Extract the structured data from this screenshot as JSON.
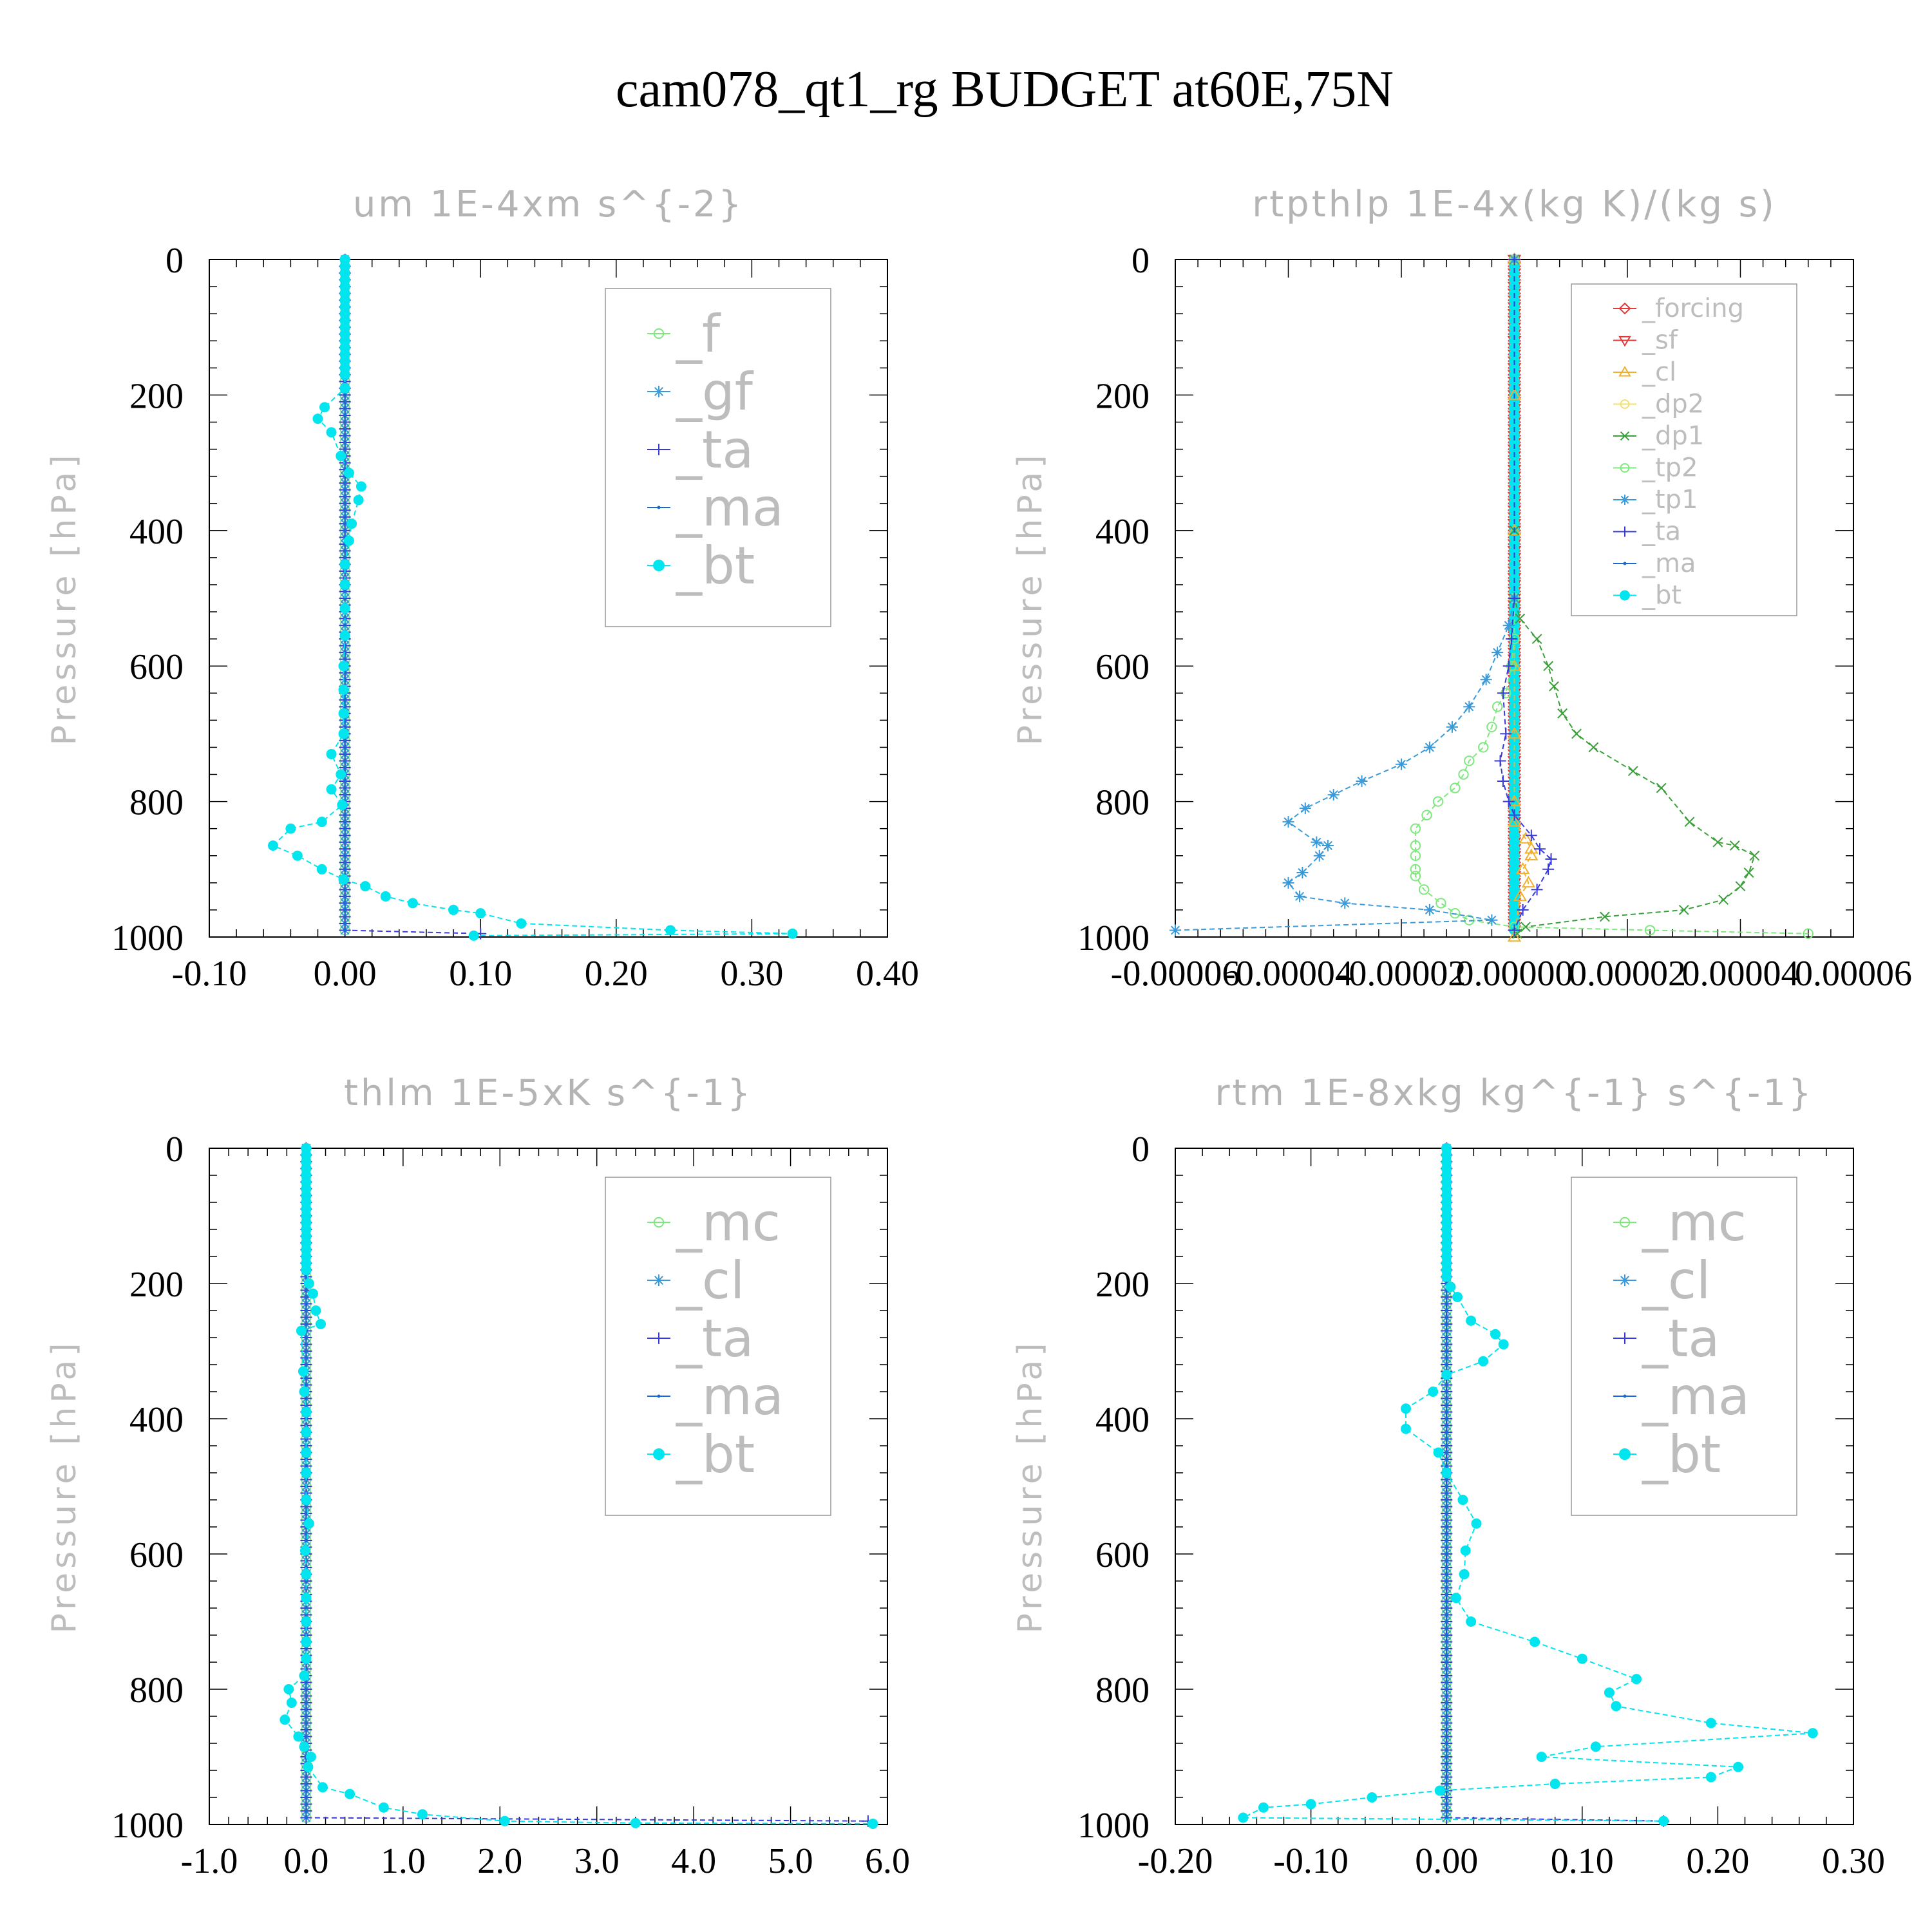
{
  "figure_title": "cam078_qt1_rg  BUDGET at60E,75N",
  "chart_data": [
    {
      "type": "line",
      "title": "um  1E-4xm s^{-2}",
      "ylabel": "Pressure [hPa]",
      "xlabel": "",
      "xlim": [
        -0.1,
        0.4
      ],
      "ylim": [
        1000,
        0
      ],
      "xticks": [
        "-0.10",
        "0.00",
        "0.10",
        "0.20",
        "0.30",
        "0.40"
      ],
      "xtick_values": [
        -0.1,
        0.0,
        0.1,
        0.2,
        0.3,
        0.4
      ],
      "yticks": [
        "0",
        "200",
        "400",
        "600",
        "800",
        "1000"
      ],
      "legend_position": "top-right",
      "legend_size": "large",
      "series": [
        {
          "name": "_f",
          "color": "#7ee87e",
          "marker": "circle-open",
          "profile": "zero"
        },
        {
          "name": "_gf",
          "color": "#3a9ad9",
          "marker": "asterisk",
          "profile": "zero"
        },
        {
          "name": "_ta",
          "color": "#3a3ad9",
          "marker": "plus",
          "profile": "zero",
          "surface": {
            "p": 995,
            "x": 0.1
          }
        },
        {
          "name": "_ma",
          "color": "#1a6ad0",
          "marker": "dot",
          "profile": "zero"
        },
        {
          "name": "_bt",
          "color": "#00e5ee",
          "marker": "filled-circle",
          "x": [
            0,
            0,
            0,
            0,
            0,
            0,
            0,
            0,
            0,
            0,
            0,
            0,
            0,
            0,
            0,
            0,
            0,
            0,
            0.0,
            -0.015,
            -0.02,
            -0.01,
            -0.003,
            0.003,
            0.012,
            0.01,
            0.005,
            0.003,
            0,
            0,
            0,
            0,
            -0.001,
            -0.001,
            -0.001,
            -0.001,
            -0.01,
            -0.003,
            -0.01,
            -0.002,
            -0.017,
            -0.04,
            -0.053,
            -0.035,
            -0.017,
            -0.001,
            0.015,
            0.03,
            0.05,
            0.08,
            0.1,
            0.13,
            0.24,
            0.33,
            0.095
          ],
          "p": [
            0,
            10,
            20,
            30,
            40,
            50,
            60,
            70,
            80,
            90,
            100,
            110,
            120,
            130,
            140,
            150,
            160,
            170,
            190,
            218,
            235,
            255,
            290,
            315,
            335,
            355,
            390,
            415,
            450,
            480,
            515,
            555,
            600,
            635,
            670,
            700,
            730,
            760,
            782,
            805,
            830,
            840,
            865,
            880,
            900,
            915,
            925,
            940,
            950,
            960,
            965,
            980,
            990,
            995,
            998
          ]
        }
      ]
    },
    {
      "type": "line",
      "title": "rtpthlp  1E-4x(kg K)/(kg s)",
      "ylabel": "Pressure [hPa]",
      "xlabel": "",
      "xlim": [
        -6e-05,
        6e-05
      ],
      "ylim": [
        1000,
        0
      ],
      "xticks": [
        "-0.00006",
        "-0.00004",
        "-0.00002",
        "0.00000",
        "0.00002",
        "0.00004",
        "0.00006"
      ],
      "xtick_values": [
        -6e-05,
        -4e-05,
        -2e-05,
        0.0,
        2e-05,
        4e-05,
        6e-05
      ],
      "yticks": [
        "0",
        "200",
        "400",
        "600",
        "800",
        "1000"
      ],
      "legend_position": "top-right",
      "legend_size": "small",
      "series": [
        {
          "name": "_forcing",
          "color": "#e23a3a",
          "marker": "diamond-open",
          "profile": "zero"
        },
        {
          "name": "_sf",
          "color": "#e23a3a",
          "marker": "triangle-down",
          "profile": "zero"
        },
        {
          "name": "_cl",
          "color": "#f0b030",
          "marker": "triangle-up",
          "x": [
            0,
            0,
            0,
            0,
            0,
            0,
            0,
            2e-06,
            3e-06,
            3e-06,
            1.5e-06,
            2.5e-06,
            1e-06,
            0
          ],
          "p": [
            0,
            200,
            400,
            600,
            700,
            800,
            830,
            855,
            870,
            880,
            900,
            920,
            940,
            1000
          ]
        },
        {
          "name": "_dp2",
          "color": "#f0e070",
          "marker": "circle-open",
          "profile": "zero"
        },
        {
          "name": "_dp1",
          "color": "#3aa03a",
          "marker": "x",
          "x": [
            0,
            0,
            0,
            1e-06,
            4e-06,
            6e-06,
            7e-06,
            8.5e-06,
            1.1e-05,
            1.4e-05,
            2.1e-05,
            2.6e-05,
            3.1e-05,
            3.6e-05,
            3.9e-05,
            4.25e-05,
            4.15e-05,
            4e-05,
            3.7e-05,
            3e-05,
            1.6e-05,
            2e-06,
            5e-07
          ],
          "p": [
            0,
            400,
            500,
            530,
            560,
            600,
            630,
            670,
            700,
            720,
            755,
            780,
            830,
            860,
            865,
            880,
            905,
            925,
            945,
            960,
            970,
            985,
            995
          ]
        },
        {
          "name": "_tp2",
          "color": "#7ee87e",
          "marker": "circle-open",
          "x": [
            0,
            0,
            0,
            -5e-07,
            -1.5e-06,
            -3e-06,
            -4e-06,
            -5.5e-06,
            -8e-06,
            -9e-06,
            -1.05e-05,
            -1.35e-05,
            -1.55e-05,
            -1.75e-05,
            -1.75e-05,
            -1.75e-05,
            -1.75e-05,
            -1.75e-05,
            -1.6e-05,
            -1.3e-05,
            -1.05e-05,
            -8e-06,
            0,
            2.4e-05,
            5.2e-05
          ],
          "p": [
            0,
            500,
            560,
            600,
            640,
            660,
            690,
            720,
            740,
            760,
            780,
            800,
            820,
            840,
            865,
            880,
            900,
            910,
            930,
            950,
            965,
            975,
            985,
            990,
            995
          ]
        },
        {
          "name": "_tp1",
          "color": "#3a9ad9",
          "marker": "asterisk",
          "x": [
            0,
            0,
            -1e-06,
            -3e-06,
            -5e-06,
            -8e-06,
            -1.1e-05,
            -1.5e-05,
            -2e-05,
            -2.7e-05,
            -3.2e-05,
            -3.7e-05,
            -4e-05,
            -3.5e-05,
            -3.3e-05,
            -3.45e-05,
            -3.75e-05,
            -4e-05,
            -3.8e-05,
            -3e-05,
            -1.5e-05,
            -4e-06,
            -6e-05
          ],
          "p": [
            0,
            500,
            540,
            580,
            620,
            660,
            690,
            720,
            745,
            770,
            790,
            810,
            830,
            860,
            865,
            880,
            905,
            920,
            940,
            950,
            960,
            975,
            990
          ]
        },
        {
          "name": "_ta",
          "color": "#3a3ad9",
          "marker": "plus",
          "x": [
            0,
            0,
            -5e-07,
            -1e-06,
            -2e-06,
            -1.5e-06,
            -2.5e-06,
            -2e-06,
            -1e-06,
            0,
            3e-06,
            4.5e-06,
            6.5e-06,
            6e-06,
            4e-06,
            1.5e-06,
            0
          ],
          "p": [
            0,
            500,
            560,
            600,
            640,
            700,
            740,
            770,
            800,
            820,
            850,
            870,
            885,
            900,
            930,
            960,
            990
          ]
        },
        {
          "name": "_ma",
          "color": "#1a6ad0",
          "marker": "dot",
          "profile": "zero"
        },
        {
          "name": "_bt",
          "color": "#00e5ee",
          "marker": "filled-circle",
          "profile": "zero"
        }
      ]
    },
    {
      "type": "line",
      "title": "thlm  1E-5xK s^{-1}",
      "ylabel": "Pressure [hPa]",
      "xlabel": "",
      "xlim": [
        -1.0,
        6.0
      ],
      "ylim": [
        1000,
        0
      ],
      "xticks": [
        "-1.0",
        "0.0",
        "1.0",
        "2.0",
        "3.0",
        "4.0",
        "5.0",
        "6.0"
      ],
      "xtick_values": [
        -1.0,
        0.0,
        1.0,
        2.0,
        3.0,
        4.0,
        5.0,
        6.0
      ],
      "yticks": [
        "0",
        "200",
        "400",
        "600",
        "800",
        "1000"
      ],
      "legend_position": "top-right",
      "legend_size": "large",
      "series": [
        {
          "name": "_mc",
          "color": "#7ee87e",
          "marker": "circle-open",
          "profile": "zero"
        },
        {
          "name": "_cl",
          "color": "#3a9ad9",
          "marker": "asterisk",
          "profile": "zero"
        },
        {
          "name": "_ta",
          "color": "#3a3ad9",
          "marker": "plus",
          "profile": "zero",
          "surface": {
            "p": 995,
            "x": 5.8
          }
        },
        {
          "name": "_ma",
          "color": "#1a6ad0",
          "marker": "dot",
          "profile": "zero"
        },
        {
          "name": "_bt",
          "color": "#00e5ee",
          "marker": "filled-circle",
          "x": [
            0,
            0,
            0,
            0,
            0,
            0,
            0,
            0,
            0,
            0,
            0,
            0,
            0,
            0,
            0,
            0,
            0,
            0,
            0,
            0.03,
            0.07,
            0.1,
            0.15,
            -0.05,
            -0.03,
            -0.02,
            0,
            0,
            0,
            0,
            0,
            0.03,
            -0.01,
            0,
            0,
            0,
            0,
            0,
            -0.02,
            -0.18,
            -0.15,
            -0.22,
            -0.08,
            -0.02,
            0.05,
            0.02,
            0.17,
            0.45,
            0.8,
            1.2,
            2.05,
            3.4,
            5.85
          ],
          "p": [
            0,
            10,
            20,
            30,
            40,
            50,
            60,
            70,
            80,
            90,
            100,
            110,
            120,
            130,
            140,
            150,
            160,
            170,
            180,
            200,
            215,
            240,
            260,
            270,
            330,
            360,
            390,
            420,
            450,
            480,
            520,
            555,
            595,
            630,
            665,
            700,
            730,
            755,
            780,
            800,
            820,
            845,
            870,
            885,
            900,
            915,
            945,
            955,
            975,
            985,
            995,
            998,
            999
          ]
        }
      ]
    },
    {
      "type": "line",
      "title": "rtm  1E-8xkg kg^{-1} s^{-1}",
      "ylabel": "Pressure [hPa]",
      "xlabel": "",
      "xlim": [
        -0.2,
        0.3
      ],
      "ylim": [
        1000,
        0
      ],
      "xticks": [
        "-0.20",
        "-0.10",
        "0.00",
        "0.10",
        "0.20",
        "0.30"
      ],
      "xtick_values": [
        -0.2,
        -0.1,
        0.0,
        0.1,
        0.2,
        0.3
      ],
      "yticks": [
        "0",
        "200",
        "400",
        "600",
        "800",
        "1000"
      ],
      "legend_position": "top-right",
      "legend_size": "large",
      "series": [
        {
          "name": "_mc",
          "color": "#7ee87e",
          "marker": "circle-open",
          "profile": "zero"
        },
        {
          "name": "_cl",
          "color": "#3a9ad9",
          "marker": "asterisk",
          "profile": "zero"
        },
        {
          "name": "_ta",
          "color": "#3a3ad9",
          "marker": "plus",
          "profile": "zero",
          "surface": {
            "p": 995,
            "x": 0.16
          }
        },
        {
          "name": "_ma",
          "color": "#1a6ad0",
          "marker": "dot",
          "profile": "zero"
        },
        {
          "name": "_bt",
          "color": "#00e5ee",
          "marker": "filled-circle",
          "x": [
            0,
            0,
            0,
            0,
            0,
            0,
            0,
            0,
            0,
            0,
            0,
            0,
            0,
            0,
            0,
            0,
            0,
            0,
            0,
            0,
            0.003,
            0.008,
            0.018,
            0.036,
            0.042,
            0.027,
            0,
            -0.01,
            -0.03,
            -0.03,
            -0.006,
            0,
            0.012,
            0.022,
            0.014,
            0.013,
            0.007,
            0.018,
            0.065,
            0.1,
            0.14,
            0.12,
            0.125,
            0.195,
            0.27,
            0.11,
            0.07,
            0.215,
            0.195,
            0.08,
            -0.005,
            -0.055,
            -0.1,
            -0.135,
            -0.15,
            0.16
          ],
          "p": [
            0,
            10,
            20,
            30,
            40,
            50,
            60,
            70,
            80,
            90,
            100,
            110,
            120,
            130,
            140,
            150,
            160,
            170,
            180,
            190,
            205,
            220,
            255,
            275,
            290,
            315,
            335,
            360,
            385,
            415,
            450,
            480,
            520,
            555,
            595,
            630,
            665,
            700,
            730,
            755,
            785,
            805,
            825,
            850,
            865,
            885,
            900,
            915,
            930,
            940,
            950,
            960,
            970,
            975,
            990,
            995
          ]
        }
      ]
    }
  ]
}
